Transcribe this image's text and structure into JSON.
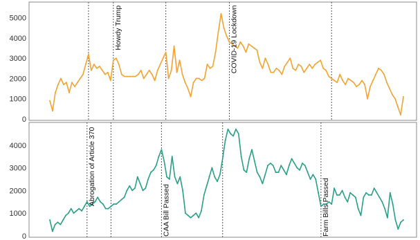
{
  "chart_data": [
    {
      "type": "line",
      "color": "#f2a331",
      "ylim": [
        0,
        5500
      ],
      "yticks": [
        "0",
        "1000",
        "2000",
        "3000",
        "4000",
        "5000"
      ],
      "grid": false,
      "events": [
        {
          "t": 14,
          "label": ""
        },
        {
          "t": 23,
          "label": "Howdy Trump"
        },
        {
          "t": 42,
          "label": ""
        },
        {
          "t": 65,
          "label": "COVID-19 Lockdown"
        },
        {
          "t": 102,
          "label": ""
        }
      ],
      "series": [
        {
          "values": [
            900,
            400,
            1300,
            1700,
            2000,
            1700,
            1800,
            1300,
            1800,
            1600,
            1800,
            2000,
            2200,
            2700,
            3200,
            2400,
            2700,
            2500,
            2600,
            2400,
            2200,
            2300,
            1900,
            2900,
            3000,
            2700,
            2200,
            2100,
            2100,
            2100,
            2100,
            2100,
            2200,
            2400,
            2000,
            2200,
            2400,
            2200,
            1900,
            2400,
            2700,
            3000,
            3300,
            2000,
            2400,
            3600,
            2300,
            2900,
            2200,
            1800,
            1500,
            1100,
            1800,
            2000,
            2000,
            1900,
            2000,
            2700,
            2500,
            2600,
            3300,
            4300,
            5200,
            4500,
            4100,
            3800,
            3700,
            3600,
            3500,
            3800,
            3600,
            3300,
            3700,
            3600,
            3500,
            3400,
            2800,
            2500,
            3000,
            2700,
            2300,
            2300,
            2500,
            2400,
            2200,
            2600,
            2800,
            3000,
            2500,
            2400,
            2700,
            2600,
            2300,
            2500,
            2700,
            2500,
            2700,
            2800,
            2900,
            2500,
            2400,
            2100,
            2000,
            1900,
            1800,
            2200,
            1900,
            1700,
            2000,
            1900,
            1800,
            1600,
            1700,
            1900,
            1700,
            1000,
            1600,
            1900,
            2200,
            2500,
            2400,
            2200,
            1800,
            1500,
            1200,
            1000,
            600,
            200,
            1100
          ]
        }
      ]
    },
    {
      "type": "line",
      "color": "#27a086",
      "ylim": [
        0,
        5000
      ],
      "yticks": [
        "0",
        "1000",
        "2000",
        "3000",
        "4000"
      ],
      "grid": false,
      "events": [
        {
          "t": 14,
          "label": "Abrogation of Article 370"
        },
        {
          "t": 23,
          "label": ""
        },
        {
          "t": 42,
          "label": "CAA Bill Passed"
        },
        {
          "t": 65,
          "label": ""
        },
        {
          "t": 102,
          "label": "Farm Bills Passed"
        }
      ],
      "series": [
        {
          "values": [
            700,
            200,
            500,
            600,
            500,
            700,
            900,
            1000,
            1200,
            1000,
            1100,
            1200,
            1100,
            1300,
            1500,
            1300,
            1400,
            1500,
            1700,
            1500,
            1400,
            1200,
            1200,
            1300,
            1400,
            1400,
            1500,
            1600,
            1700,
            2000,
            2200,
            2000,
            2100,
            2600,
            2300,
            2000,
            2100,
            2500,
            2800,
            2900,
            3100,
            3500,
            3800,
            3300,
            2600,
            2500,
            3500,
            2600,
            2300,
            2600,
            2000,
            1000,
            900,
            800,
            900,
            1000,
            800,
            1100,
            1800,
            2200,
            2600,
            3000,
            2600,
            2400,
            2700,
            3400,
            4200,
            4700,
            4500,
            4400,
            4700,
            4500,
            3500,
            2900,
            2800,
            3400,
            3800,
            3300,
            2800,
            2600,
            2300,
            2700,
            3100,
            3200,
            3100,
            2800,
            2800,
            3100,
            2900,
            2700,
            3100,
            3400,
            3200,
            3000,
            2900,
            3200,
            3100,
            2800,
            2500,
            2700,
            2500,
            1900,
            1300,
            1400,
            1400,
            1500,
            1400,
            2100,
            1800,
            1800,
            2000,
            1700,
            1500,
            1900,
            1800,
            1700,
            1200,
            900,
            1700,
            1900,
            1800,
            1800,
            2100,
            1900,
            1700,
            1500,
            1200,
            800,
            1900,
            1400,
            700,
            300,
            600,
            700
          ]
        }
      ]
    }
  ]
}
